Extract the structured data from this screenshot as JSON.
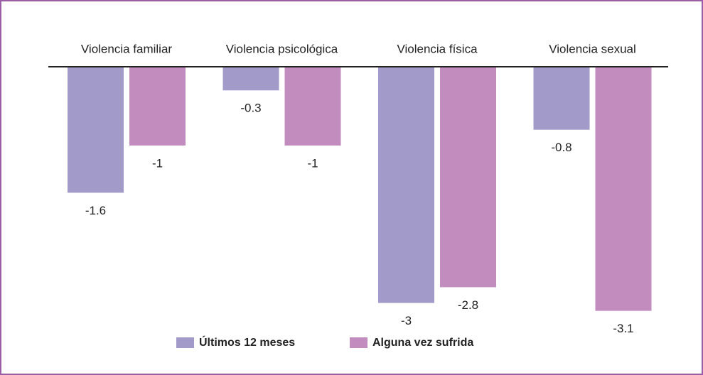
{
  "chart_data": {
    "type": "bar",
    "categories": [
      "Violencia familiar",
      "Violencia psicológica",
      "Violencia física",
      "Violencia sexual"
    ],
    "series": [
      {
        "name": "Últimos 12 meses",
        "color": "#a29bca",
        "values": [
          -1.6,
          -0.3,
          -3.0,
          -0.8
        ]
      },
      {
        "name": "Alguna vez sufrida",
        "color": "#c28cbf",
        "values": [
          -1.0,
          -1.0,
          -2.8,
          -3.1
        ]
      }
    ],
    "ylim": [
      -3.5,
      0
    ]
  }
}
